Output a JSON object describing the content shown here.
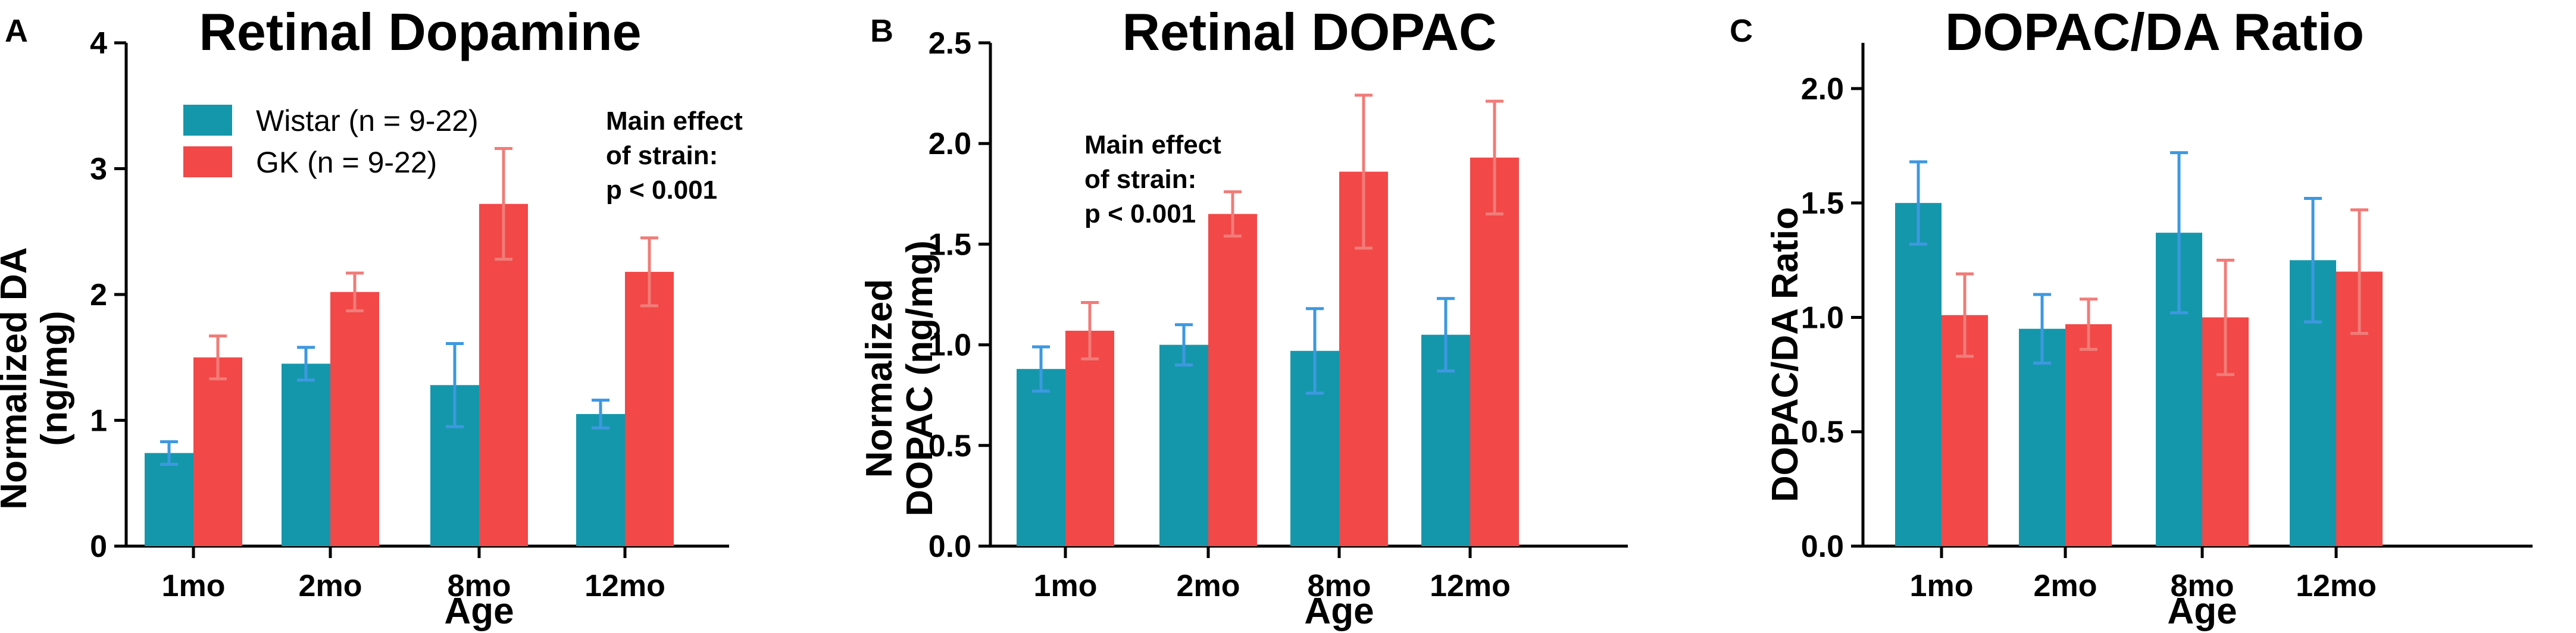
{
  "colors": {
    "wistar": "#1597AB",
    "gk": "#F24848",
    "wistar_err": "#3D98E0",
    "gk_err": "#F07C78"
  },
  "chart_data": [
    {
      "type": "bar",
      "panel": "A",
      "title": "Retinal Dopamine",
      "xlabel": "Age",
      "ylabel_lines": [
        "Normalized DA",
        "(ng/mg)"
      ],
      "categories": [
        "1mo",
        "2mo",
        "8mo",
        "12mo"
      ],
      "ylim": [
        0,
        4
      ],
      "yticks": [
        0,
        1,
        2,
        3,
        4
      ],
      "ytick_labels": [
        "0",
        "1",
        "2",
        "3",
        "4"
      ],
      "series": [
        {
          "name": "Wistar (n = 9-22)",
          "values": [
            0.74,
            1.45,
            1.28,
            1.05
          ],
          "errors": [
            0.09,
            0.13,
            0.33,
            0.11
          ]
        },
        {
          "name": "GK (n = 9-22)",
          "values": [
            1.5,
            2.02,
            2.72,
            2.18
          ],
          "errors": [
            0.17,
            0.15,
            0.44,
            0.27
          ]
        }
      ],
      "legend": [
        "Wistar (n = 9-22)",
        "GK (n = 9-22)"
      ],
      "annotation": [
        "Main effect",
        "of strain:",
        "p < 0.001"
      ]
    },
    {
      "type": "bar",
      "panel": "B",
      "title": "Retinal DOPAC",
      "xlabel": "Age",
      "ylabel_lines": [
        "Normalized",
        "DOPAC (ng/mg)"
      ],
      "categories": [
        "1mo",
        "2mo",
        "8mo",
        "12mo"
      ],
      "ylim": [
        0,
        2.5
      ],
      "yticks": [
        0,
        0.5,
        1.0,
        1.5,
        2.0,
        2.5
      ],
      "ytick_labels": [
        "0.0",
        "0.5",
        "1.0",
        "1.5",
        "2.0",
        "2.5"
      ],
      "series": [
        {
          "name": "Wistar",
          "values": [
            0.88,
            1.0,
            0.97,
            1.05
          ],
          "errors": [
            0.11,
            0.1,
            0.21,
            0.18
          ]
        },
        {
          "name": "GK",
          "values": [
            1.07,
            1.65,
            1.86,
            1.93
          ],
          "errors": [
            0.14,
            0.11,
            0.38,
            0.28
          ]
        }
      ],
      "annotation": [
        "Main effect",
        "of strain:",
        "p < 0.001"
      ]
    },
    {
      "type": "bar",
      "panel": "C",
      "title": "DOPAC/DA Ratio",
      "xlabel": "Age",
      "ylabel_lines": [
        "DOPAC/DA Ratio"
      ],
      "categories": [
        "1mo",
        "2mo",
        "8mo",
        "12mo"
      ],
      "ylim": [
        0,
        2.2
      ],
      "yticks": [
        0,
        0.5,
        1.0,
        1.5,
        2.0
      ],
      "ytick_labels": [
        "0.0",
        "0.5",
        "1.0",
        "1.5",
        "2.0"
      ],
      "series": [
        {
          "name": "Wistar",
          "values": [
            1.5,
            0.95,
            1.37,
            1.25
          ],
          "errors": [
            0.18,
            0.15,
            0.35,
            0.27
          ]
        },
        {
          "name": "GK",
          "values": [
            1.01,
            0.97,
            1.0,
            1.2
          ],
          "errors": [
            0.18,
            0.11,
            0.25,
            0.27
          ]
        }
      ]
    }
  ]
}
